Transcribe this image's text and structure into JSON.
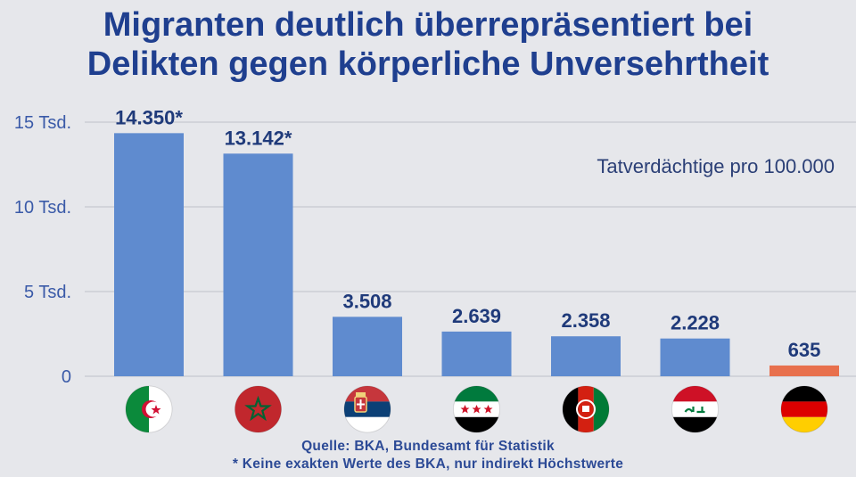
{
  "title_lines": [
    "Migranten deutlich überrepräsentiert bei",
    "Delikten gegen körperliche Unversehrtheit"
  ],
  "subtitle": "Tatverdächtige pro 100.000",
  "source": "Quelle: BKA, Bundesamt für Statistik",
  "footnote": "* Keine exakten Werte des BKA, nur indirekt Höchstwerte",
  "colors": {
    "title": "#1f3f8f",
    "bar": "#5f8bcf",
    "bar_highlight": "#e8704d",
    "grid": "#c6c9d0",
    "tick": "#3a5aa8",
    "label": "#1f3a7a"
  },
  "chart_data": {
    "type": "bar",
    "categories": [
      "Algeria",
      "Morocco",
      "Serbia",
      "Syria",
      "Afghanistan",
      "Iraq",
      "Germany"
    ],
    "category_icons": [
      "algeria-flag-icon",
      "morocco-flag-icon",
      "serbia-flag-icon",
      "syria-flag-icon",
      "afghanistan-flag-icon",
      "iraq-flag-icon",
      "germany-flag-icon"
    ],
    "values": [
      14350,
      13142,
      3508,
      2639,
      2358,
      2228,
      635
    ],
    "value_labels": [
      "14.350*",
      "13.142*",
      "3.508",
      "2.639",
      "2.358",
      "2.228",
      "635"
    ],
    "highlight_index": 6,
    "ylim": [
      0,
      15000
    ],
    "yticks": [
      0,
      5000,
      10000,
      15000
    ],
    "ytick_labels": [
      "0",
      "5 Tsd.",
      "10 Tsd.",
      "15 Tsd."
    ],
    "grid": true,
    "legend": false
  }
}
